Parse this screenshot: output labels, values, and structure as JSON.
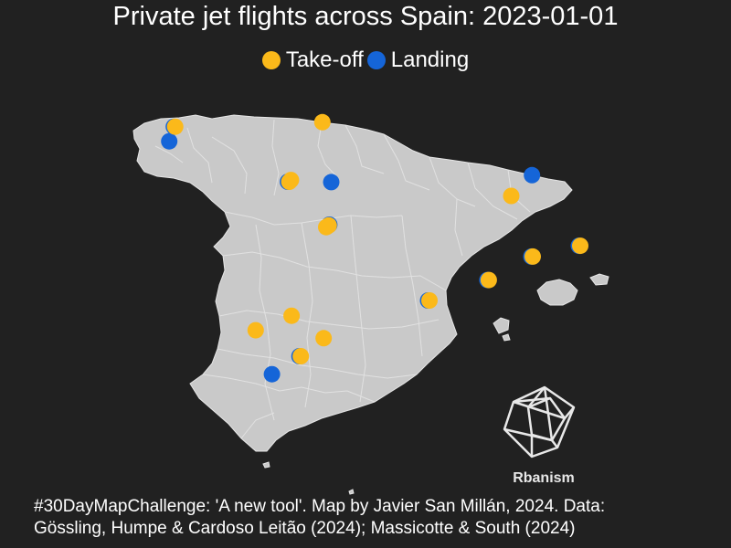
{
  "title": "Private jet flights across Spain: 2023-01-01",
  "legend": {
    "items": [
      {
        "label": "Take-off",
        "color": "#FBB91A"
      },
      {
        "label": "Landing",
        "color": "#1565D8"
      }
    ]
  },
  "colors": {
    "background": "#212121",
    "land": "#C9C9C9",
    "borders": "#E6E6E6",
    "takeoff": "#FBB91A",
    "landing": "#1565D8"
  },
  "logo": {
    "text": "Rbanism"
  },
  "caption": {
    "line1": "#30DayMapChallenge: 'A new tool'. Map by Javier San Millán, 2024. Data:",
    "line2": "Gössling, Humpe & Cardoso Leitão (2024); Massicotte & South (2024)"
  },
  "map_data": {
    "region": "Spain",
    "landing_points": [
      {
        "lon": -8.41,
        "lat": 43.3
      },
      {
        "lon": -8.55,
        "lat": 42.88
      },
      {
        "lon": -4.85,
        "lat": 41.71
      },
      {
        "lon": -3.5,
        "lat": 41.7
      },
      {
        "lon": 2.76,
        "lat": 41.9
      },
      {
        "lon": -3.56,
        "lat": 40.47
      },
      {
        "lon": -0.48,
        "lat": 38.28
      },
      {
        "lon": 2.74,
        "lat": 39.55
      },
      {
        "lon": 1.37,
        "lat": 38.87
      },
      {
        "lon": 4.22,
        "lat": 39.86
      },
      {
        "lon": -4.49,
        "lat": 36.67
      },
      {
        "lon": -5.35,
        "lat": 36.15
      }
    ],
    "takeoff_points": [
      {
        "lon": -8.41,
        "lat": 43.3
      },
      {
        "lon": -3.82,
        "lat": 43.43
      },
      {
        "lon": -4.85,
        "lat": 41.71
      },
      {
        "lon": -4.8,
        "lat": 41.76
      },
      {
        "lon": 2.07,
        "lat": 41.3
      },
      {
        "lon": -3.62,
        "lat": 40.45
      },
      {
        "lon": -3.7,
        "lat": 40.4
      },
      {
        "lon": -0.48,
        "lat": 38.28
      },
      {
        "lon": 2.74,
        "lat": 39.55
      },
      {
        "lon": 1.37,
        "lat": 38.87
      },
      {
        "lon": 4.22,
        "lat": 39.86
      },
      {
        "lon": -4.78,
        "lat": 37.84
      },
      {
        "lon": -5.9,
        "lat": 37.42
      },
      {
        "lon": -3.78,
        "lat": 37.19
      },
      {
        "lon": -4.49,
        "lat": 36.67
      }
    ]
  }
}
